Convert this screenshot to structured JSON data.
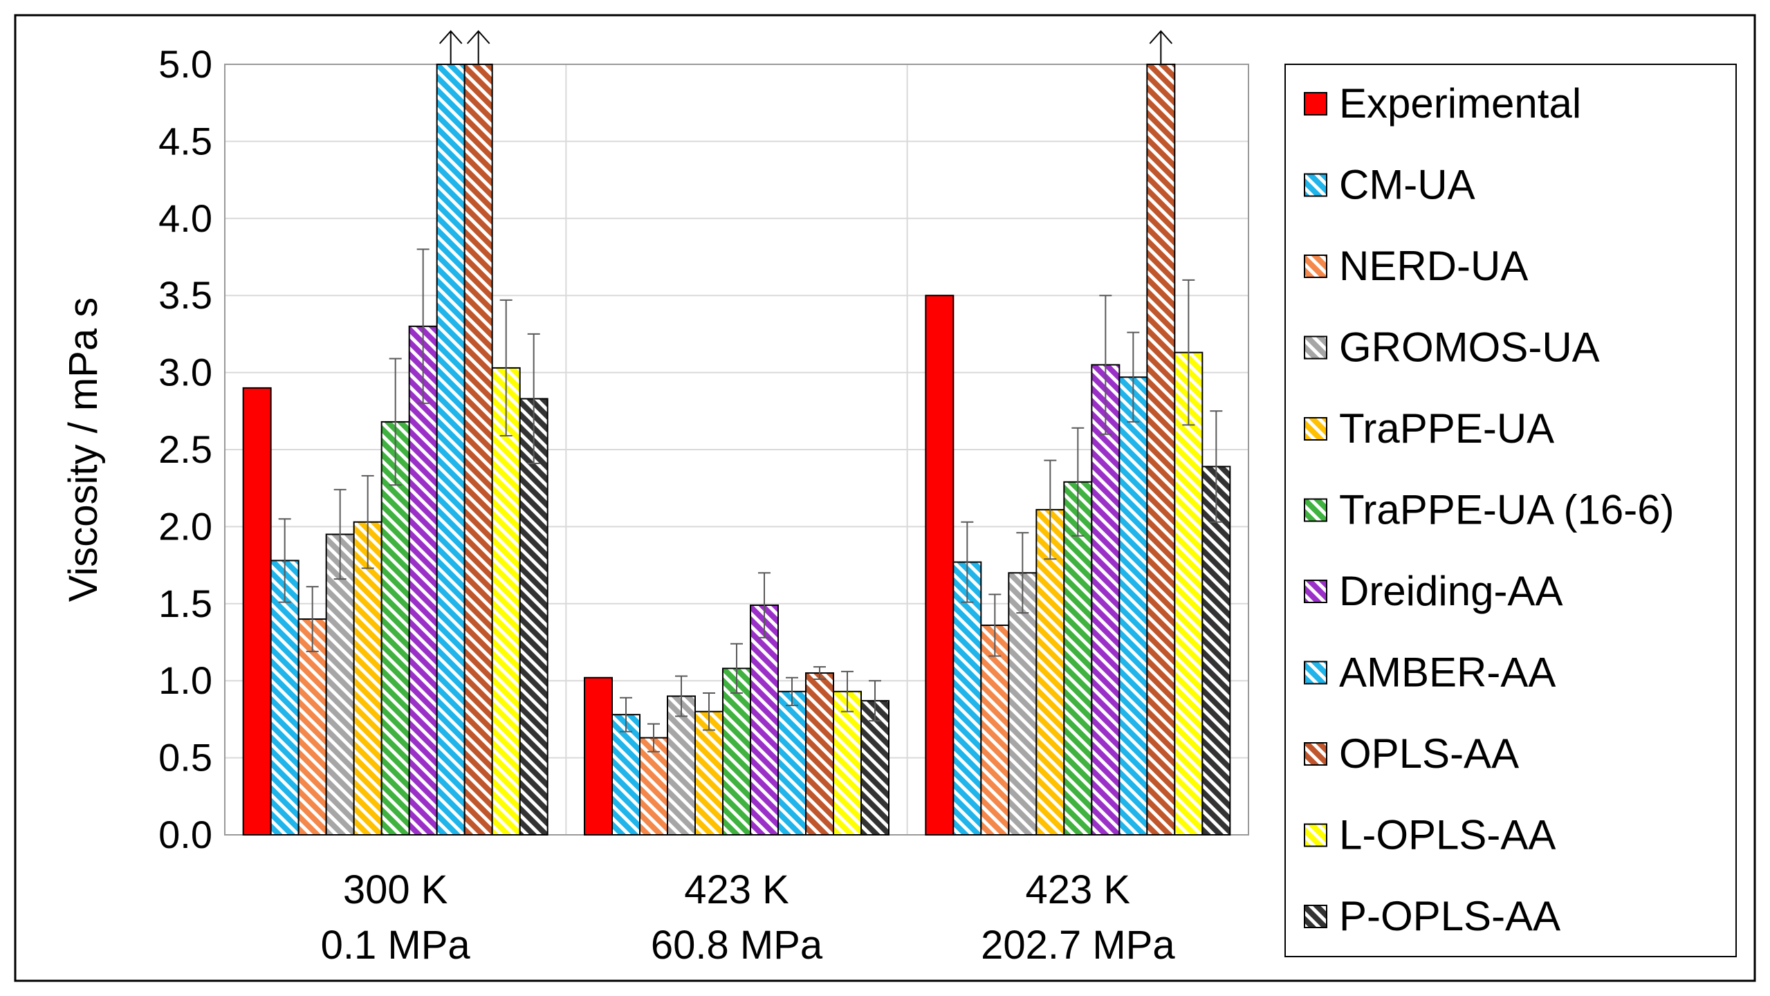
{
  "chart_data": {
    "type": "bar",
    "title": "",
    "xlabel": "",
    "ylabel": "Viscosity / mPa s",
    "ylim": [
      0,
      5
    ],
    "yticks": [
      "0.0",
      "0.5",
      "1.0",
      "1.5",
      "2.0",
      "2.5",
      "3.0",
      "3.5",
      "4.0",
      "4.5",
      "5.0"
    ],
    "grid": "horizontal and vertical",
    "legend_position": "right",
    "categories": [
      {
        "line1": "300 K",
        "line2": "0.1 MPa"
      },
      {
        "line1": "423 K",
        "line2": "60.8 MPa"
      },
      {
        "line1": "423 K",
        "line2": "202.7 MPa"
      }
    ],
    "series": [
      {
        "name": "Experimental",
        "color": "#FF0000",
        "pattern": "solid",
        "values": [
          2.9,
          1.02,
          3.5
        ],
        "errors": [
          null,
          null,
          null
        ],
        "off_scale": [
          false,
          false,
          false
        ]
      },
      {
        "name": "CM-UA",
        "color": "#1FB4EA",
        "pattern": "hatch",
        "values": [
          1.78,
          0.78,
          1.77
        ],
        "errors": [
          0.27,
          0.11,
          0.26
        ],
        "off_scale": [
          false,
          false,
          false
        ]
      },
      {
        "name": "NERD-UA",
        "color": "#F4874A",
        "pattern": "hatch",
        "values": [
          1.4,
          0.63,
          1.36
        ],
        "errors": [
          0.21,
          0.09,
          0.2
        ],
        "off_scale": [
          false,
          false,
          false
        ]
      },
      {
        "name": "GROMOS-UA",
        "color": "#A6A6A6",
        "pattern": "hatch",
        "values": [
          1.95,
          0.9,
          1.7
        ],
        "errors": [
          0.29,
          0.13,
          0.26
        ],
        "off_scale": [
          false,
          false,
          false
        ]
      },
      {
        "name": "TraPPE-UA",
        "color": "#FFC000",
        "pattern": "hatch",
        "values": [
          2.03,
          0.8,
          2.11
        ],
        "errors": [
          0.3,
          0.12,
          0.32
        ],
        "off_scale": [
          false,
          false,
          false
        ]
      },
      {
        "name": "TraPPE-UA (16-6)",
        "color": "#3FB23F",
        "pattern": "hatch",
        "values": [
          2.68,
          1.08,
          2.29
        ],
        "errors": [
          0.41,
          0.16,
          0.35
        ],
        "off_scale": [
          false,
          false,
          false
        ]
      },
      {
        "name": "Dreiding-AA",
        "color": "#9B30C8",
        "pattern": "hatch",
        "values": [
          3.3,
          1.49,
          3.05
        ],
        "errors": [
          0.5,
          0.21,
          0.45
        ],
        "off_scale": [
          false,
          false,
          false
        ]
      },
      {
        "name": "AMBER-AA",
        "color": "#1FB4EA",
        "pattern": "hatch",
        "values": [
          5.0,
          0.93,
          2.97
        ],
        "errors": [
          null,
          0.09,
          0.29
        ],
        "off_scale": [
          true,
          false,
          false
        ]
      },
      {
        "name": "OPLS-AA",
        "color": "#C0562B",
        "pattern": "hatch",
        "values": [
          5.0,
          1.05,
          5.0
        ],
        "errors": [
          null,
          0.04,
          null
        ],
        "off_scale": [
          true,
          false,
          true
        ]
      },
      {
        "name": "L-OPLS-AA",
        "color": "#FFFF00",
        "pattern": "hatch",
        "values": [
          3.03,
          0.93,
          3.13
        ],
        "errors": [
          0.44,
          0.13,
          0.47
        ],
        "off_scale": [
          false,
          false,
          false
        ]
      },
      {
        "name": "P-OPLS-AA",
        "color": "#333333",
        "pattern": "hatch",
        "values": [
          2.83,
          0.87,
          2.39
        ],
        "errors": [
          0.42,
          0.13,
          0.36
        ],
        "off_scale": [
          false,
          false,
          false
        ]
      }
    ]
  }
}
